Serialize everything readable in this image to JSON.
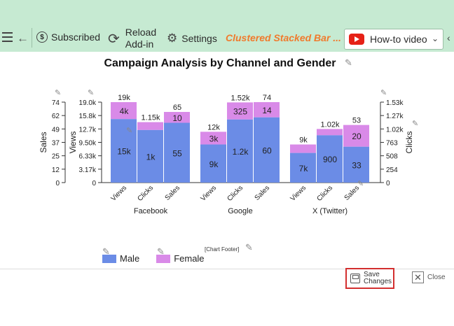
{
  "toolbar": {
    "subscribed_label": "Subscribed",
    "reload_label_line1": "Reload",
    "reload_label_line2": "Add-in",
    "settings_label": "Settings",
    "chart_name": "Clustered Stacked Bar ...",
    "howto_label": "How-to video"
  },
  "chart_data": {
    "type": "bar",
    "variant": "clustered-stacked",
    "title": "Campaign Analysis by Channel and Gender",
    "groups": [
      "Facebook",
      "Google",
      "X (Twitter)"
    ],
    "categories": [
      "Views",
      "Clicks",
      "Sales"
    ],
    "stack_names": [
      "Male",
      "Female"
    ],
    "colors": {
      "Male": "#6b8ce6",
      "Female": "#d98ae8"
    },
    "data": {
      "Facebook": {
        "Views": {
          "Male": 15000,
          "Female": 4000,
          "total_label": "19k",
          "male_label": "15k",
          "female_label": "4k"
        },
        "Clicks": {
          "Male": 1000,
          "Female": 150,
          "total_label": "1.15k",
          "male_label": "1k",
          "female_label": ""
        },
        "Sales": {
          "Male": 55,
          "Female": 10,
          "total_label": "65",
          "male_label": "55",
          "female_label": "10"
        }
      },
      "Google": {
        "Views": {
          "Male": 9000,
          "Female": 3000,
          "total_label": "12k",
          "male_label": "9k",
          "female_label": "3k"
        },
        "Clicks": {
          "Male": 1200,
          "Female": 325,
          "total_label": "1.52k",
          "male_label": "1.2k",
          "female_label": "325"
        },
        "Sales": {
          "Male": 60,
          "Female": 14,
          "total_label": "74",
          "male_label": "60",
          "female_label": "14"
        }
      },
      "X (Twitter)": {
        "Views": {
          "Male": 7000,
          "Female": 2000,
          "total_label": "9k",
          "male_label": "7k",
          "female_label": ""
        },
        "Clicks": {
          "Male": 900,
          "Female": 120,
          "total_label": "1.02k",
          "male_label": "900",
          "female_label": ""
        },
        "Sales": {
          "Male": 33,
          "Female": 20,
          "total_label": "53",
          "male_label": "33",
          "female_label": "20"
        }
      }
    },
    "axes": {
      "sales": {
        "label": "Sales",
        "ylim": [
          0,
          74
        ],
        "ticks": [
          "74",
          "62",
          "49",
          "37",
          "25",
          "12",
          "0"
        ]
      },
      "views": {
        "label": "Views",
        "ylim": [
          0,
          19000
        ],
        "ticks": [
          "19.0k",
          "15.8k",
          "12.7k",
          "9.50k",
          "6.33k",
          "3.17k",
          "0"
        ]
      },
      "clicks": {
        "label": "Clicks",
        "ylim": [
          0,
          1530
        ],
        "ticks": [
          "1.53k",
          "1.27k",
          "1.02k",
          "763",
          "508",
          "254",
          "0"
        ]
      }
    },
    "footer": "[Chart Footer]",
    "legend": [
      "Male",
      "Female"
    ]
  },
  "buttons": {
    "save_line1": "Save",
    "save_line2": "Changes",
    "close_label": "Close"
  }
}
